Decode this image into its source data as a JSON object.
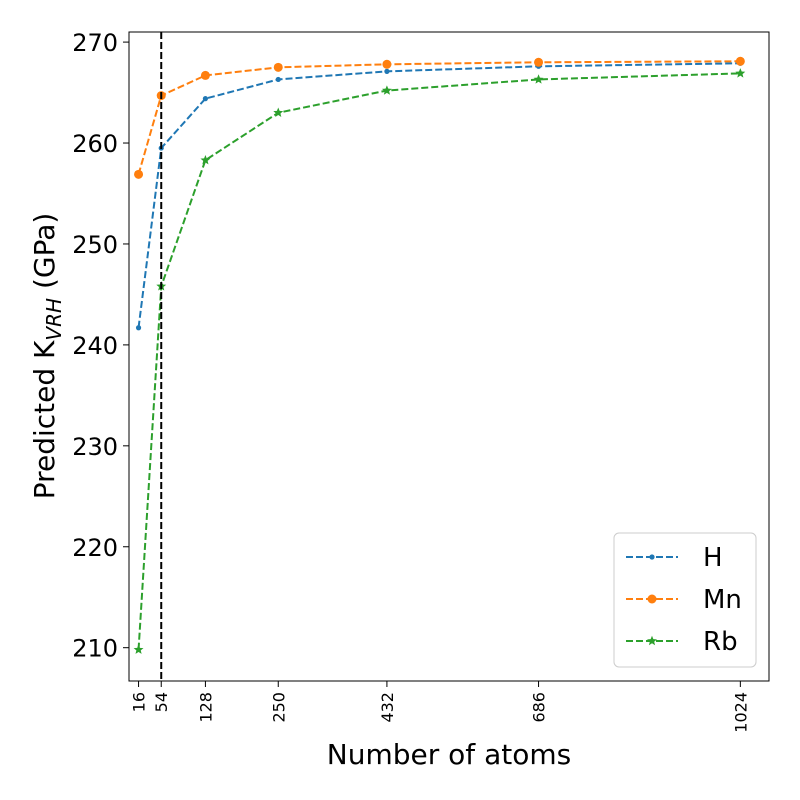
{
  "chart_data": {
    "type": "line",
    "xlabel": "Number of atoms",
    "ylabel": "Predicted K",
    "ylabel_subscript": "VRH",
    "ylabel_unit": " (GPa)",
    "x": [
      16,
      54,
      128,
      250,
      432,
      686,
      1024
    ],
    "x_ticks": [
      "16",
      "54",
      "128",
      "250",
      "432",
      "686",
      "1024"
    ],
    "y_ticks": [
      210,
      220,
      230,
      240,
      250,
      260,
      270
    ],
    "xlim": [
      0,
      1072
    ],
    "ylim": [
      206.7,
      271.0
    ],
    "grid": false,
    "vline_x": 54,
    "legend_position": "bottom-right",
    "series": [
      {
        "name": "H",
        "color": "#1f77b4",
        "marker": "point",
        "values": [
          241.7,
          259.5,
          264.4,
          266.3,
          267.1,
          267.6,
          267.9
        ]
      },
      {
        "name": "Mn",
        "color": "#ff7f0e",
        "marker": "circle",
        "values": [
          256.9,
          264.7,
          266.7,
          267.5,
          267.8,
          268.0,
          268.1
        ]
      },
      {
        "name": "Rb",
        "color": "#2ca02c",
        "marker": "star",
        "values": [
          209.8,
          245.8,
          258.3,
          263.0,
          265.2,
          266.3,
          266.9
        ]
      }
    ]
  }
}
